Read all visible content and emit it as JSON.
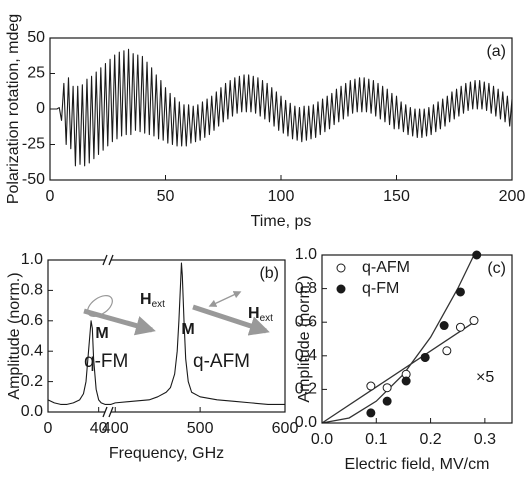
{
  "chart_data": [
    {
      "type": "line",
      "label": "(a)",
      "xlabel": "Time, ps",
      "ylabel": "Polarization rotation, mdeg",
      "x": [
        0,
        1,
        2,
        3,
        4,
        5,
        6,
        7,
        8,
        9,
        10,
        11,
        12,
        13,
        14,
        15,
        16,
        17,
        18,
        19,
        20,
        21,
        22,
        23,
        24,
        25,
        26,
        27,
        28,
        29,
        30,
        31,
        32,
        33,
        34,
        35,
        36,
        37,
        38,
        39,
        40,
        41,
        42,
        43,
        44,
        45,
        46,
        47,
        48,
        49,
        50,
        51,
        52,
        53,
        54,
        55,
        56,
        57,
        58,
        59,
        60,
        61,
        62,
        63,
        64,
        65,
        66,
        67,
        68,
        69,
        70,
        71,
        72,
        73,
        74,
        75,
        76,
        77,
        78,
        79,
        80,
        81,
        82,
        83,
        84,
        85,
        86,
        87,
        88,
        89,
        90,
        91,
        92,
        93,
        94,
        95,
        96,
        97,
        98,
        99,
        100,
        101,
        102,
        103,
        104,
        105,
        106,
        107,
        108,
        109,
        110,
        111,
        112,
        113,
        114,
        115,
        116,
        117,
        118,
        119,
        120,
        121,
        122,
        123,
        124,
        125,
        126,
        127,
        128,
        129,
        130,
        131,
        132,
        133,
        134,
        135,
        136,
        137,
        138,
        139,
        140,
        141,
        142,
        143,
        144,
        145,
        146,
        147,
        148,
        149,
        150,
        151,
        152,
        153,
        154,
        155,
        156,
        157,
        158,
        159,
        160,
        161,
        162,
        163,
        164,
        165,
        166,
        167,
        168,
        169,
        170,
        171,
        172,
        173,
        174,
        175,
        176,
        177,
        178,
        179,
        180,
        181,
        182,
        183,
        184,
        185,
        186,
        187,
        188,
        189,
        190,
        191,
        192,
        193,
        194,
        195,
        196,
        197,
        198,
        199,
        200
      ],
      "series": [
        {
          "color": "#1a1a1a",
          "values": [
            0,
            0,
            0,
            0,
            1,
            -8,
            18,
            -25,
            22,
            -28,
            16,
            -40,
            16,
            -39,
            17,
            -40,
            21,
            -38,
            23,
            -35,
            26,
            -32,
            29,
            -29,
            32,
            -26,
            35,
            -23,
            38,
            -21,
            40,
            -19,
            41,
            -18,
            42,
            -18,
            39,
            -15,
            38,
            -16,
            37,
            -17,
            33,
            -18,
            29,
            -19,
            24,
            -21,
            20,
            -22,
            15,
            -24,
            11,
            -25,
            8,
            -26,
            5,
            -26,
            3,
            -26,
            3,
            -24,
            2,
            -23,
            3,
            -22,
            5,
            -20,
            7,
            -18,
            9,
            -15,
            12,
            -12,
            15,
            -9,
            18,
            -7,
            20,
            -5,
            22,
            -3,
            23,
            -2,
            24,
            -2,
            24,
            -2,
            23,
            -3,
            22,
            -5,
            20,
            -7,
            18,
            -9,
            15,
            -12,
            12,
            -15,
            9,
            -17,
            6,
            -19,
            4,
            -21,
            2,
            -22,
            1,
            -23,
            2,
            -22,
            2,
            -21,
            3,
            -20,
            5,
            -18,
            7,
            -16,
            9,
            -14,
            11,
            -11,
            14,
            -9,
            16,
            -7,
            18,
            -5,
            20,
            -3,
            21,
            -2,
            22,
            -2,
            22,
            -2,
            21,
            -3,
            20,
            -5,
            18,
            -7,
            16,
            -9,
            14,
            -11,
            11,
            -14,
            9,
            -14,
            5,
            -16,
            3,
            -18,
            1,
            -19,
            0,
            -20,
            0,
            -20,
            0,
            -19,
            1,
            -18,
            3,
            -16,
            5,
            -14,
            7,
            -12,
            9,
            -9,
            12,
            -7,
            14,
            -5,
            16,
            -3,
            18,
            -1,
            19,
            0,
            20,
            0,
            20,
            0,
            19,
            -1,
            18,
            -3,
            16,
            -5,
            14,
            -7,
            12,
            -9,
            9,
            -12,
            7
          ]
        }
      ],
      "xlim": [
        0,
        200
      ],
      "ylim": [
        -50,
        50
      ],
      "xticks": [
        0,
        50,
        100,
        150,
        200
      ],
      "yticks": [
        -50,
        -25,
        0,
        25,
        50
      ]
    },
    {
      "type": "line",
      "label": "(b)",
      "xlabel": "Frequency, GHz",
      "ylabel": "Amplitude (norm.)",
      "x": [
        0,
        5,
        10,
        15,
        20,
        25,
        28,
        30,
        32,
        34,
        35,
        36,
        38,
        40,
        42,
        45,
        395,
        400,
        420,
        440,
        450,
        460,
        465,
        470,
        473,
        475,
        477,
        478,
        479,
        481,
        483,
        486,
        490,
        500,
        520,
        540,
        560,
        580,
        600
      ],
      "series": [
        {
          "color": "#1a1a1a",
          "values": [
            0.08,
            0.06,
            0.05,
            0.05,
            0.06,
            0.08,
            0.12,
            0.2,
            0.4,
            0.6,
            0.55,
            0.35,
            0.15,
            0.08,
            0.06,
            0.05,
            0.05,
            0.06,
            0.07,
            0.08,
            0.1,
            0.13,
            0.16,
            0.25,
            0.4,
            0.6,
            0.85,
            0.98,
            0.9,
            0.6,
            0.35,
            0.2,
            0.13,
            0.1,
            0.08,
            0.07,
            0.06,
            0.05,
            0.05
          ]
        }
      ],
      "xlim": [
        0,
        600
      ],
      "xbreak": [
        45,
        395
      ],
      "ylim": [
        0,
        1
      ],
      "xticks": [
        0,
        40,
        400,
        500,
        600
      ],
      "yticks": [
        {
          "value": 0,
          "label": "0.0"
        },
        {
          "value": 0.2,
          "label": "0.2"
        },
        {
          "value": 0.4,
          "label": "0.4"
        },
        {
          "value": 0.6,
          "label": "0.6"
        },
        {
          "value": 0.8,
          "label": "0.8"
        },
        {
          "value": 1,
          "label": "1.0"
        }
      ],
      "annotations": [
        {
          "text": "q-FM"
        },
        {
          "text": "q-AFM"
        },
        {
          "text": "M"
        },
        {
          "text": "M"
        },
        {
          "text": "H",
          "sub": "ext"
        },
        {
          "text": "H",
          "sub": "ext"
        }
      ]
    },
    {
      "type": "scatter",
      "label": "(c)",
      "xlabel": "Electric field, MV/cm",
      "ylabel": "Amplitude (norm.)",
      "xlim": [
        0,
        0.35
      ],
      "ylim": [
        0,
        1
      ],
      "xticks": [
        {
          "value": 0,
          "label": "0.0"
        },
        0.1,
        0.2,
        0.3
      ],
      "yticks": [
        {
          "value": 0,
          "label": "0.0"
        },
        0.2,
        0.4,
        0.6,
        0.8,
        {
          "value": 1,
          "label": "1.0"
        }
      ],
      "legend": "upper left",
      "series": [
        {
          "name": "q-AFM",
          "marker": "open",
          "color": "#1a1a1a",
          "x": [
            0.09,
            0.12,
            0.155,
            0.19,
            0.23,
            0.255,
            0.28
          ],
          "values": [
            0.22,
            0.21,
            0.29,
            0.39,
            0.43,
            0.57,
            0.61
          ]
        },
        {
          "name": "q-FM",
          "marker": "filled",
          "color": "#1a1a1a",
          "x": [
            0.09,
            0.12,
            0.155,
            0.19,
            0.225,
            0.255,
            0.285
          ],
          "values": [
            0.06,
            0.13,
            0.25,
            0.39,
            0.58,
            0.78,
            1.0
          ]
        }
      ],
      "fits": [
        {
          "color": "#333333",
          "x": [
            0,
            0.28
          ],
          "values": [
            0,
            0.6
          ]
        },
        {
          "color": "#333333",
          "x": [
            0,
            0.05,
            0.1,
            0.15,
            0.2,
            0.25,
            0.28
          ],
          "values": [
            0,
            0.03,
            0.13,
            0.29,
            0.51,
            0.8,
            1.0
          ]
        }
      ],
      "annotations": [
        {
          "text": "×5"
        }
      ]
    }
  ]
}
